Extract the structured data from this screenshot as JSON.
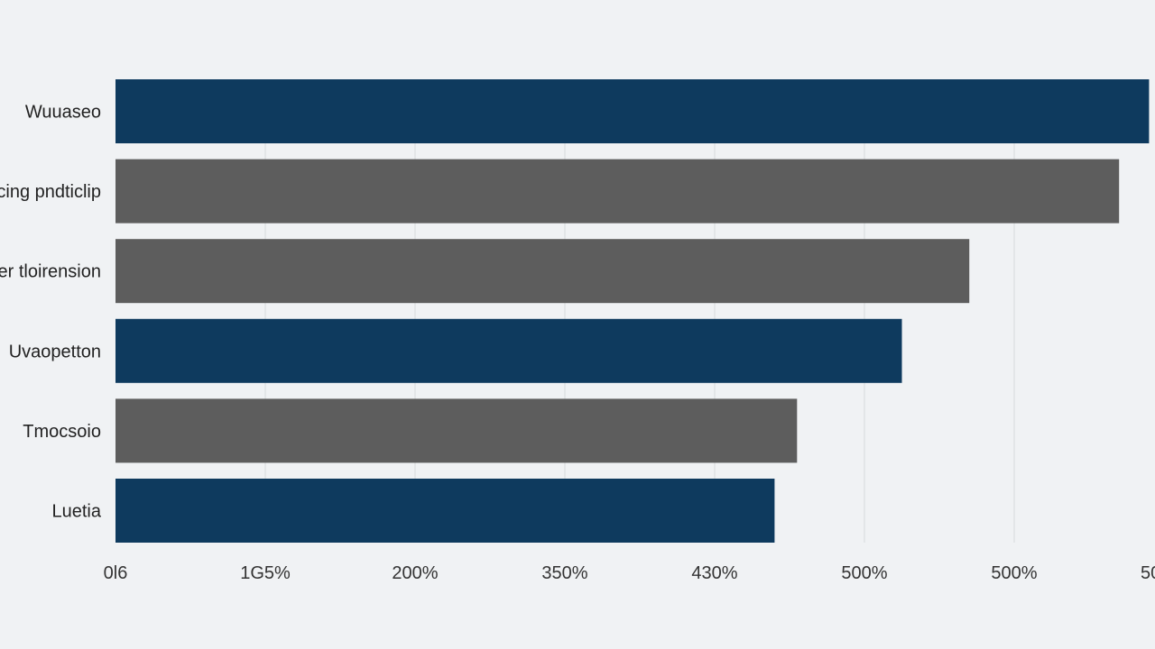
{
  "chart_data": {
    "type": "bar",
    "orientation": "horizontal",
    "categories": [
      "Wuuaseo",
      "cing pndticlip",
      "er tloirension",
      "Uvaopetton",
      "Tmocsoio",
      "Luetia"
    ],
    "values": [
      6.9,
      6.7,
      5.7,
      5.25,
      4.55,
      4.4
    ],
    "bar_colors": [
      "#0e3a5e",
      "#5d5d5d",
      "#5d5d5d",
      "#0e3a5e",
      "#5d5d5d",
      "#0e3a5e"
    ],
    "x_ticks": [
      {
        "value": 0,
        "label": "0l6"
      },
      {
        "value": 1,
        "label": "1G5%"
      },
      {
        "value": 2,
        "label": "200%"
      },
      {
        "value": 3,
        "label": "350%"
      },
      {
        "value": 4,
        "label": "430%"
      },
      {
        "value": 5,
        "label": "500%"
      },
      {
        "value": 6,
        "label": "500%"
      },
      {
        "value": 7,
        "label": "50"
      }
    ],
    "xlim": [
      0,
      7
    ],
    "grid": true,
    "legend": "none"
  }
}
